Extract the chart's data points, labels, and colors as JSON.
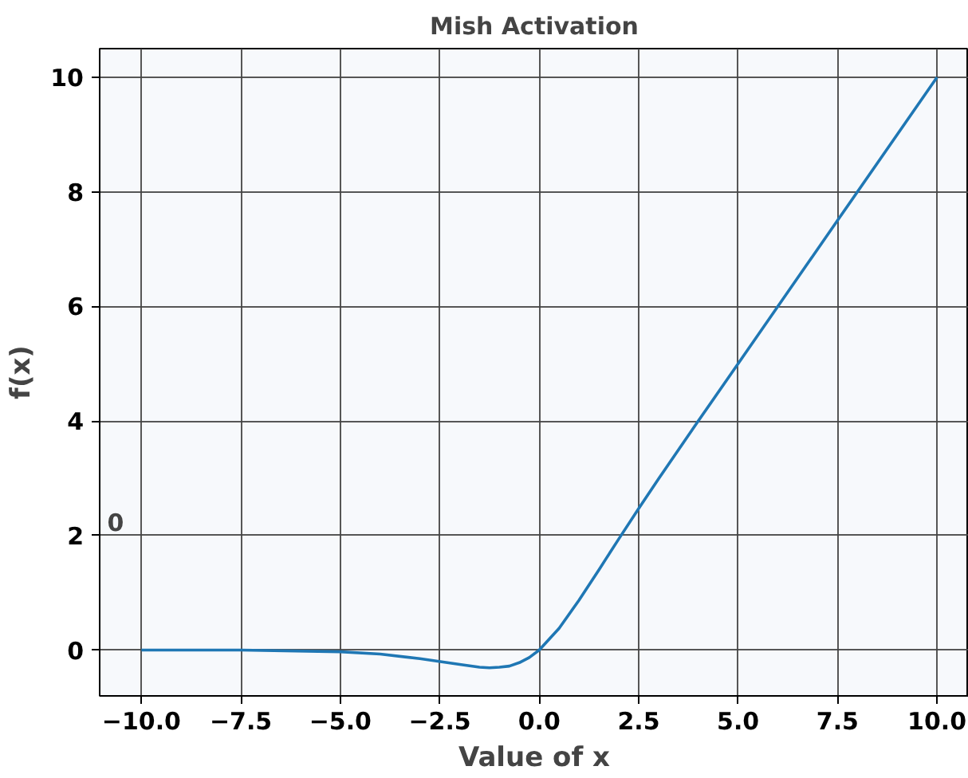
{
  "chart_data": {
    "type": "line",
    "title": "Mish Activation",
    "xlabel": "Value of x",
    "ylabel": "f(x)",
    "series": [
      {
        "color": "#1f77b4",
        "x": [
          -10,
          -7.5,
          -5,
          -4,
          -3,
          -2,
          -1.5,
          -1.25,
          -1,
          -0.75,
          -0.5,
          -0.25,
          0,
          0.5,
          1,
          1.5,
          2,
          2.5,
          3,
          4,
          5,
          7.5,
          10
        ],
        "values": [
          0,
          0,
          -0.03,
          -0.07,
          -0.15,
          -0.25,
          -0.3,
          -0.31,
          -0.3,
          -0.28,
          -0.22,
          -0.13,
          0,
          0.38,
          0.87,
          1.4,
          1.94,
          2.47,
          2.99,
          4.0,
          5.0,
          7.5,
          10
        ]
      }
    ],
    "xlim": [
      -11.05,
      10.8
    ],
    "ylim": [
      -0.8,
      10.5
    ],
    "xticks": [
      {
        "value": -10,
        "label": "−10.0"
      },
      {
        "value": -7.5,
        "label": "−7.5"
      },
      {
        "value": -5,
        "label": "−5.0"
      },
      {
        "value": -2.5,
        "label": "−2.5"
      },
      {
        "value": 0,
        "label": "0.0"
      },
      {
        "value": 2.5,
        "label": "2.5"
      },
      {
        "value": 5,
        "label": "5.0"
      },
      {
        "value": 7.5,
        "label": "7.5"
      },
      {
        "value": 10,
        "label": "10.0"
      }
    ],
    "yticks": [
      0,
      2,
      4,
      6,
      8,
      10
    ],
    "grid": true,
    "marker": "none",
    "line_style": "solid",
    "annotations": [
      "0"
    ]
  }
}
